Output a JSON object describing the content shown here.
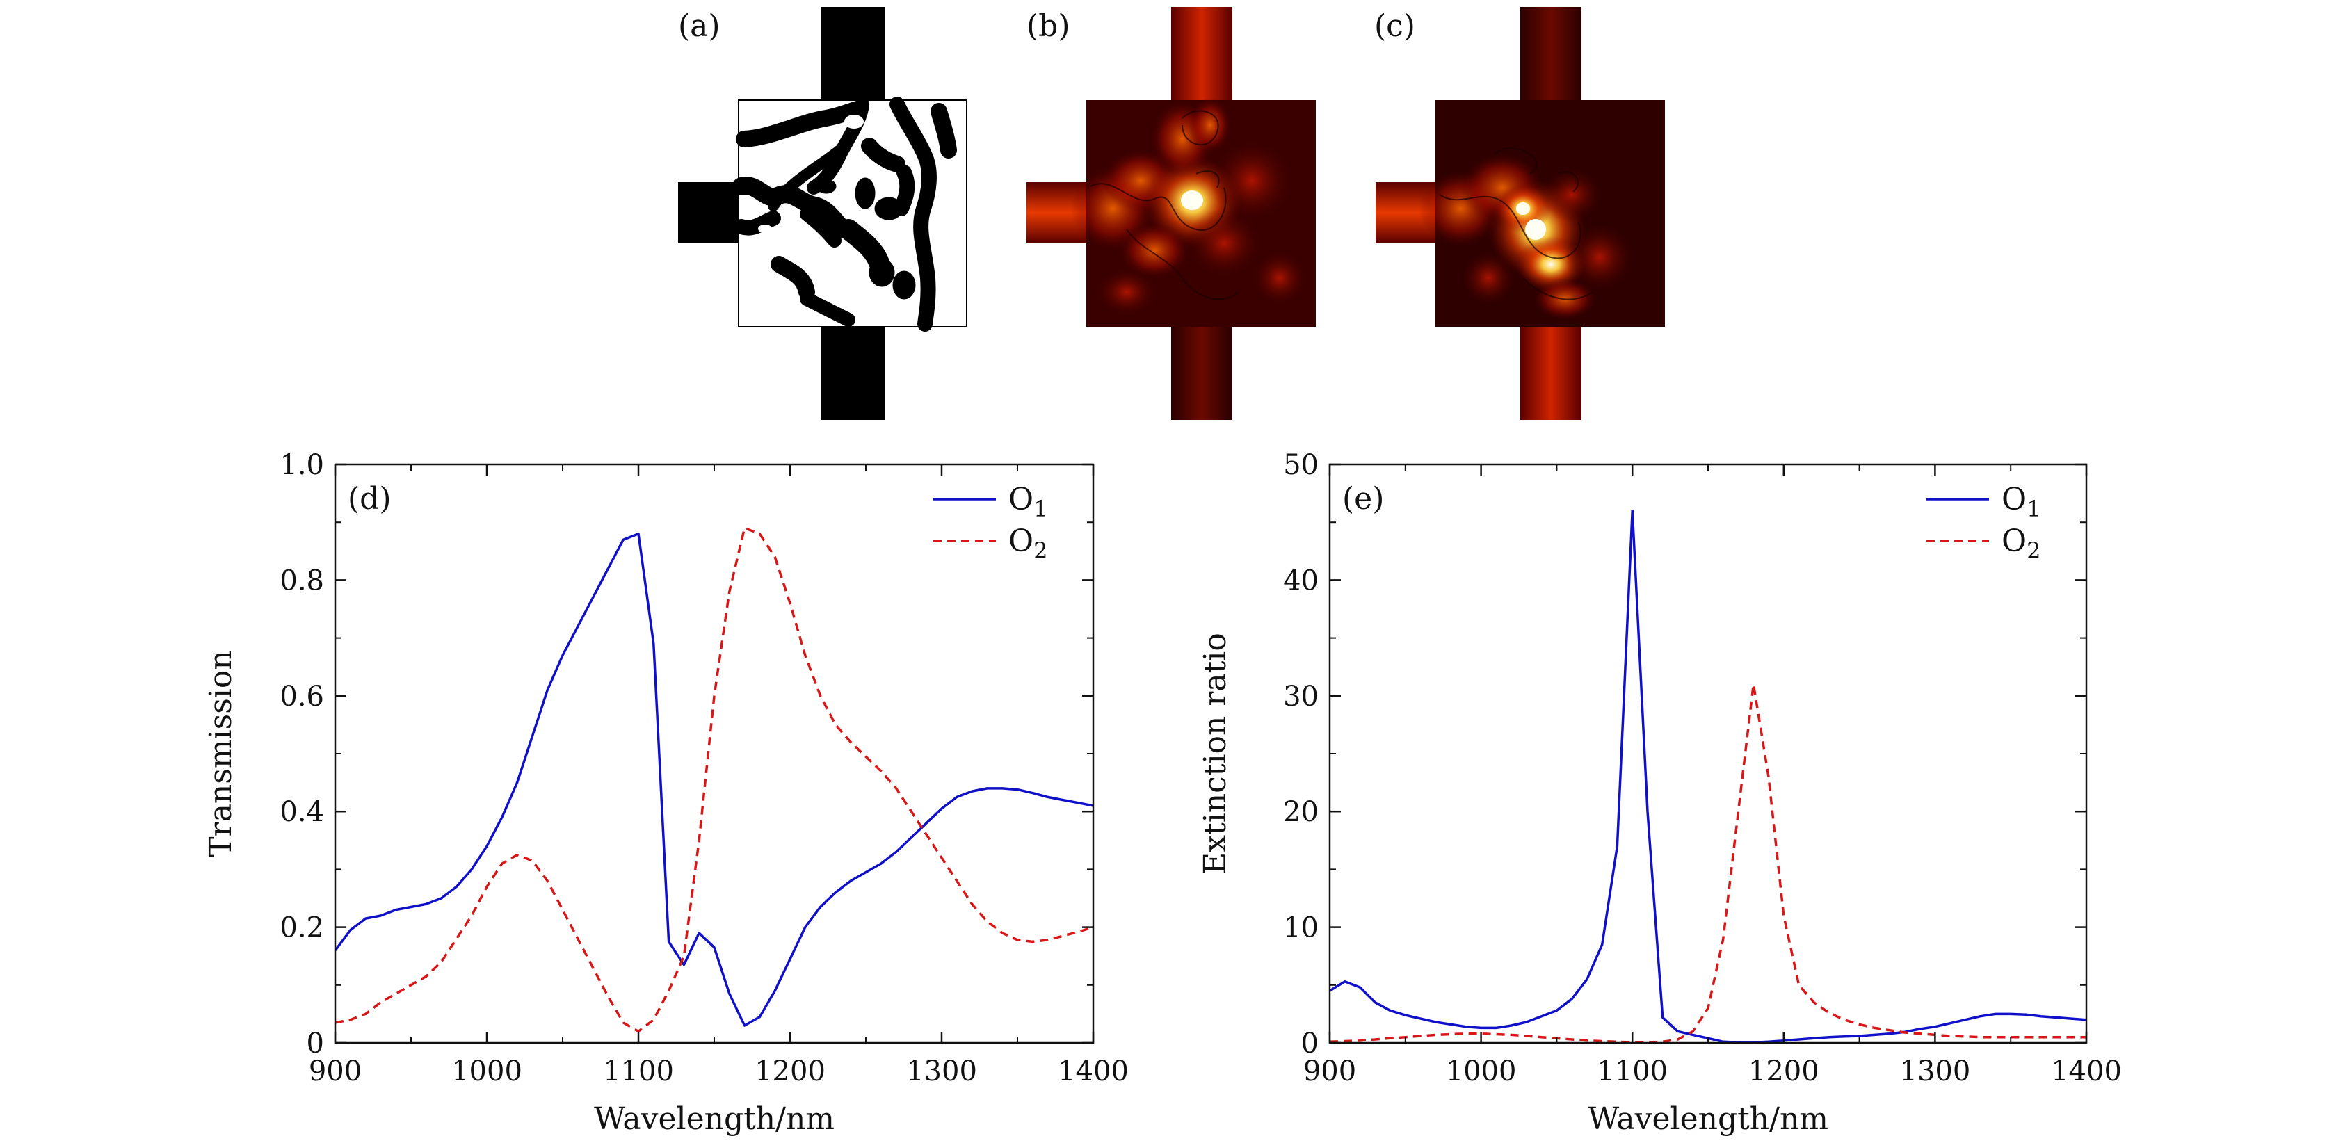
{
  "figure": {
    "top_panel_labels": [
      "(a)",
      "(b)",
      "(c)"
    ],
    "colors": {
      "o1": "#1010c8",
      "o2": "#d81818",
      "heat_dark": "#2a0000",
      "heat_mid": "#c01800",
      "heat_hot": "#ff8a00",
      "heat_peak": "#ffffe0"
    }
  },
  "chart_data": [
    {
      "type": "line",
      "panel_label": "(d)",
      "xlabel": "Wavelength/nm",
      "ylabel": "Transmission",
      "xlim": [
        900,
        1400
      ],
      "ylim": [
        0,
        1.0
      ],
      "xticks": [
        900,
        1000,
        1100,
        1200,
        1300,
        1400
      ],
      "xtick_labels": [
        "900",
        "1000",
        "1100",
        "1200",
        "1300",
        "1400"
      ],
      "yticks": [
        0,
        0.2,
        0.4,
        0.6,
        0.8,
        1.0
      ],
      "ytick_labels": [
        "0",
        "0.2",
        "0.4",
        "0.6",
        "0.8",
        "1.0"
      ],
      "legend_position": "top-right",
      "series": [
        {
          "name": "O",
          "sub": "1",
          "style": "solid",
          "x": [
            900,
            910,
            920,
            930,
            940,
            950,
            960,
            970,
            980,
            990,
            1000,
            1010,
            1020,
            1030,
            1040,
            1050,
            1060,
            1070,
            1080,
            1090,
            1100,
            1110,
            1120,
            1130,
            1140,
            1150,
            1160,
            1170,
            1180,
            1190,
            1200,
            1210,
            1220,
            1230,
            1240,
            1250,
            1260,
            1270,
            1280,
            1290,
            1300,
            1310,
            1320,
            1330,
            1340,
            1350,
            1360,
            1370,
            1380,
            1390,
            1400
          ],
          "y": [
            0.16,
            0.195,
            0.215,
            0.22,
            0.23,
            0.235,
            0.24,
            0.25,
            0.27,
            0.3,
            0.34,
            0.39,
            0.45,
            0.53,
            0.61,
            0.67,
            0.72,
            0.77,
            0.82,
            0.87,
            0.88,
            0.69,
            0.175,
            0.135,
            0.19,
            0.165,
            0.085,
            0.03,
            0.045,
            0.09,
            0.145,
            0.2,
            0.235,
            0.26,
            0.28,
            0.295,
            0.31,
            0.33,
            0.355,
            0.38,
            0.405,
            0.425,
            0.435,
            0.44,
            0.44,
            0.438,
            0.432,
            0.425,
            0.42,
            0.415,
            0.41
          ]
        },
        {
          "name": "O",
          "sub": "2",
          "style": "dashed",
          "x": [
            900,
            910,
            920,
            930,
            940,
            950,
            960,
            970,
            980,
            990,
            1000,
            1010,
            1020,
            1030,
            1040,
            1050,
            1060,
            1070,
            1080,
            1090,
            1100,
            1110,
            1120,
            1130,
            1140,
            1150,
            1160,
            1170,
            1180,
            1190,
            1200,
            1210,
            1220,
            1230,
            1240,
            1250,
            1260,
            1270,
            1280,
            1290,
            1300,
            1310,
            1320,
            1330,
            1340,
            1350,
            1360,
            1370,
            1380,
            1390,
            1400
          ],
          "y": [
            0.035,
            0.04,
            0.05,
            0.07,
            0.085,
            0.1,
            0.115,
            0.14,
            0.18,
            0.22,
            0.27,
            0.31,
            0.325,
            0.315,
            0.28,
            0.23,
            0.18,
            0.13,
            0.08,
            0.035,
            0.02,
            0.04,
            0.09,
            0.15,
            0.35,
            0.6,
            0.78,
            0.89,
            0.88,
            0.84,
            0.76,
            0.67,
            0.6,
            0.55,
            0.52,
            0.495,
            0.47,
            0.44,
            0.4,
            0.36,
            0.32,
            0.28,
            0.24,
            0.21,
            0.19,
            0.178,
            0.175,
            0.178,
            0.185,
            0.192,
            0.2
          ]
        }
      ]
    },
    {
      "type": "line",
      "panel_label": "(e)",
      "xlabel": "Wavelength/nm",
      "ylabel": "Extinction ratio",
      "xlim": [
        900,
        1400
      ],
      "ylim": [
        0,
        50
      ],
      "xticks": [
        900,
        1000,
        1100,
        1200,
        1300,
        1400
      ],
      "xtick_labels": [
        "900",
        "1000",
        "1100",
        "1200",
        "1300",
        "1400"
      ],
      "yticks": [
        0,
        10,
        20,
        30,
        40,
        50
      ],
      "ytick_labels": [
        "0",
        "10",
        "20",
        "30",
        "40",
        "50"
      ],
      "legend_position": "top-right",
      "series": [
        {
          "name": "O",
          "sub": "1",
          "style": "solid",
          "x": [
            900,
            910,
            920,
            930,
            940,
            950,
            960,
            970,
            980,
            990,
            1000,
            1010,
            1020,
            1030,
            1040,
            1050,
            1060,
            1070,
            1080,
            1090,
            1100,
            1110,
            1120,
            1130,
            1140,
            1150,
            1160,
            1170,
            1180,
            1190,
            1200,
            1210,
            1220,
            1230,
            1240,
            1250,
            1260,
            1270,
            1280,
            1290,
            1300,
            1310,
            1320,
            1330,
            1340,
            1350,
            1360,
            1370,
            1380,
            1390,
            1400
          ],
          "y": [
            4.5,
            5.3,
            4.8,
            3.5,
            2.8,
            2.4,
            2.1,
            1.8,
            1.6,
            1.4,
            1.3,
            1.3,
            1.5,
            1.8,
            2.3,
            2.8,
            3.8,
            5.5,
            8.5,
            17,
            46,
            20,
            2.2,
            1.0,
            0.7,
            0.4,
            0.1,
            0.05,
            0.05,
            0.1,
            0.2,
            0.3,
            0.4,
            0.5,
            0.55,
            0.6,
            0.7,
            0.8,
            0.95,
            1.2,
            1.4,
            1.7,
            2.0,
            2.3,
            2.5,
            2.5,
            2.45,
            2.3,
            2.2,
            2.1,
            2.0
          ]
        },
        {
          "name": "O",
          "sub": "2",
          "style": "dashed",
          "x": [
            900,
            910,
            920,
            930,
            940,
            950,
            960,
            970,
            980,
            990,
            1000,
            1010,
            1020,
            1030,
            1040,
            1050,
            1060,
            1070,
            1080,
            1090,
            1100,
            1110,
            1120,
            1130,
            1140,
            1150,
            1160,
            1170,
            1180,
            1190,
            1200,
            1210,
            1220,
            1230,
            1240,
            1250,
            1260,
            1270,
            1280,
            1290,
            1300,
            1310,
            1320,
            1330,
            1340,
            1350,
            1360,
            1370,
            1380,
            1390,
            1400
          ],
          "y": [
            0.1,
            0.15,
            0.2,
            0.3,
            0.4,
            0.5,
            0.6,
            0.7,
            0.75,
            0.8,
            0.8,
            0.75,
            0.7,
            0.6,
            0.5,
            0.4,
            0.3,
            0.2,
            0.15,
            0.1,
            0.05,
            0.05,
            0.1,
            0.3,
            1.0,
            3.0,
            9.0,
            20.0,
            31.0,
            23.0,
            11.0,
            5.0,
            3.5,
            2.6,
            2.0,
            1.6,
            1.3,
            1.1,
            0.9,
            0.8,
            0.7,
            0.6,
            0.55,
            0.5,
            0.5,
            0.5,
            0.5,
            0.5,
            0.5,
            0.5,
            0.5
          ]
        }
      ]
    }
  ]
}
